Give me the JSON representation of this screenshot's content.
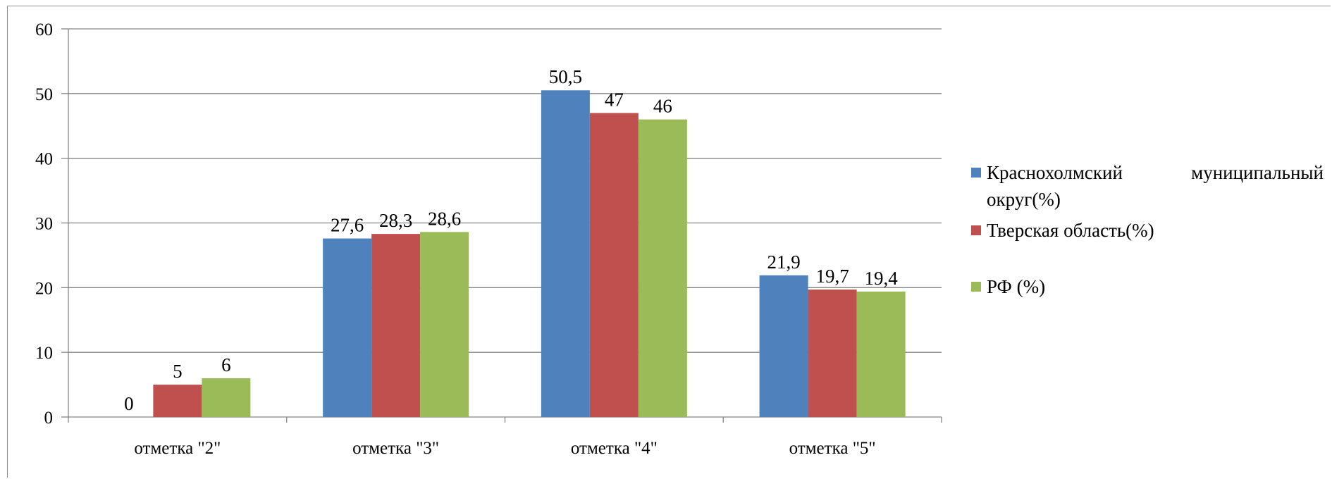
{
  "chart_data": {
    "type": "bar",
    "categories": [
      "отметка \"2\"",
      "отметка \"3\"",
      "отметка \"4\"",
      "отметка \"5\""
    ],
    "series": [
      {
        "name": "Краснохолмский муниципальный округ(%)",
        "values": [
          0,
          27.6,
          50.5,
          21.9
        ],
        "labels": [
          "0",
          "27,6",
          "50,5",
          "21,9"
        ],
        "color": "#4f81bd"
      },
      {
        "name": "Тверская область(%)",
        "values": [
          5,
          28.3,
          47,
          19.7
        ],
        "labels": [
          "5",
          "28,3",
          "47",
          "19,7"
        ],
        "color": "#c0504d"
      },
      {
        "name": "РФ (%)",
        "values": [
          6,
          28.6,
          46,
          19.4
        ],
        "labels": [
          "6",
          "28,6",
          "46",
          "19,4"
        ],
        "color": "#9bbb59"
      }
    ],
    "ylim": [
      0,
      60
    ],
    "yticks": [
      0,
      10,
      20,
      30,
      40,
      50,
      60
    ],
    "grid": true,
    "legend_position": "right",
    "title": "",
    "xlabel": "",
    "ylabel": ""
  }
}
